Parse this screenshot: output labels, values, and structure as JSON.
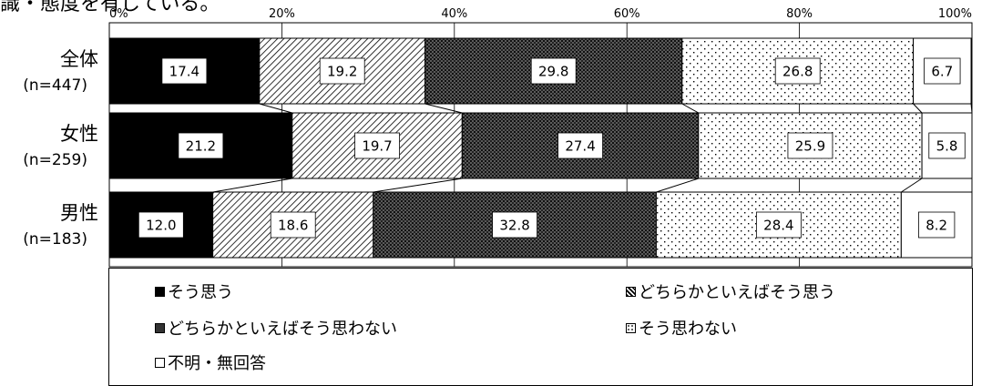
{
  "header_partial": "識・態度を有している。",
  "chart_data": {
    "type": "bar",
    "orientation": "horizontal",
    "stacked": true,
    "percent": true,
    "xlim": [
      0,
      100
    ],
    "x_ticks": [
      "0%",
      "20%",
      "40%",
      "60%",
      "80%",
      "100%"
    ],
    "grid": true,
    "legend_position": "bottom",
    "categories": [
      {
        "label": "全体",
        "n": "(n=447)"
      },
      {
        "label": "女性",
        "n": "(n=259)"
      },
      {
        "label": "男性",
        "n": "(n=183)"
      }
    ],
    "series": [
      {
        "name": "そう思う",
        "pattern": "solid-black",
        "values": [
          17.4,
          21.2,
          12.0
        ],
        "labels": [
          "17.4",
          "21.2",
          "12.0"
        ]
      },
      {
        "name": "どちらかといえばそう思う",
        "pattern": "diagonal-hatch",
        "values": [
          19.2,
          19.7,
          18.6
        ],
        "labels": [
          "19.2",
          "19.7",
          "18.6"
        ]
      },
      {
        "name": "どちらかといえばそう思わない",
        "pattern": "dense-dots",
        "values": [
          29.8,
          27.4,
          32.8
        ],
        "labels": [
          "29.8",
          "27.4",
          "32.8"
        ]
      },
      {
        "name": "そう思わない",
        "pattern": "sparse-dots",
        "values": [
          26.8,
          25.9,
          28.4
        ],
        "labels": [
          "26.8",
          "25.9",
          "28.4"
        ]
      },
      {
        "name": "不明・無回答",
        "pattern": "white",
        "values": [
          6.7,
          5.8,
          8.2
        ],
        "labels": [
          "6.7",
          "5.8",
          "8.2"
        ]
      }
    ]
  }
}
